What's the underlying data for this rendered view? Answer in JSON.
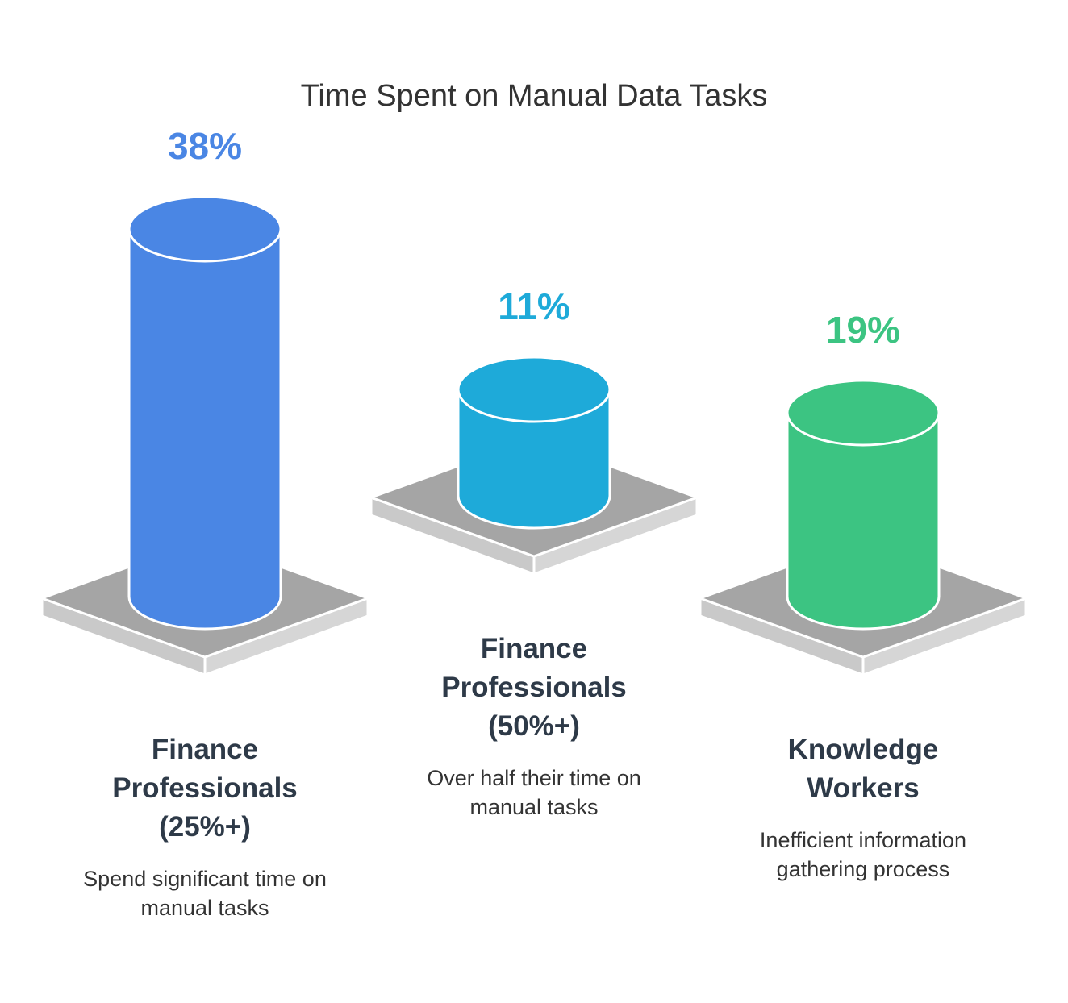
{
  "chart_data": {
    "type": "cylinder",
    "title": "Time Spent on Manual Data Tasks",
    "categories": [
      "Finance Professionals (25%+)",
      "Finance Professionals (50%+)",
      "Knowledge Workers"
    ],
    "descriptions": [
      "Spend significant time on manual tasks",
      "Over half their time on manual tasks",
      "Inefficient information gathering process"
    ],
    "values": [
      38,
      11,
      19
    ],
    "value_labels": [
      "38%",
      "11%",
      "19%"
    ],
    "colors": [
      "#4a86e4",
      "#1eaad9",
      "#3cc482"
    ]
  }
}
